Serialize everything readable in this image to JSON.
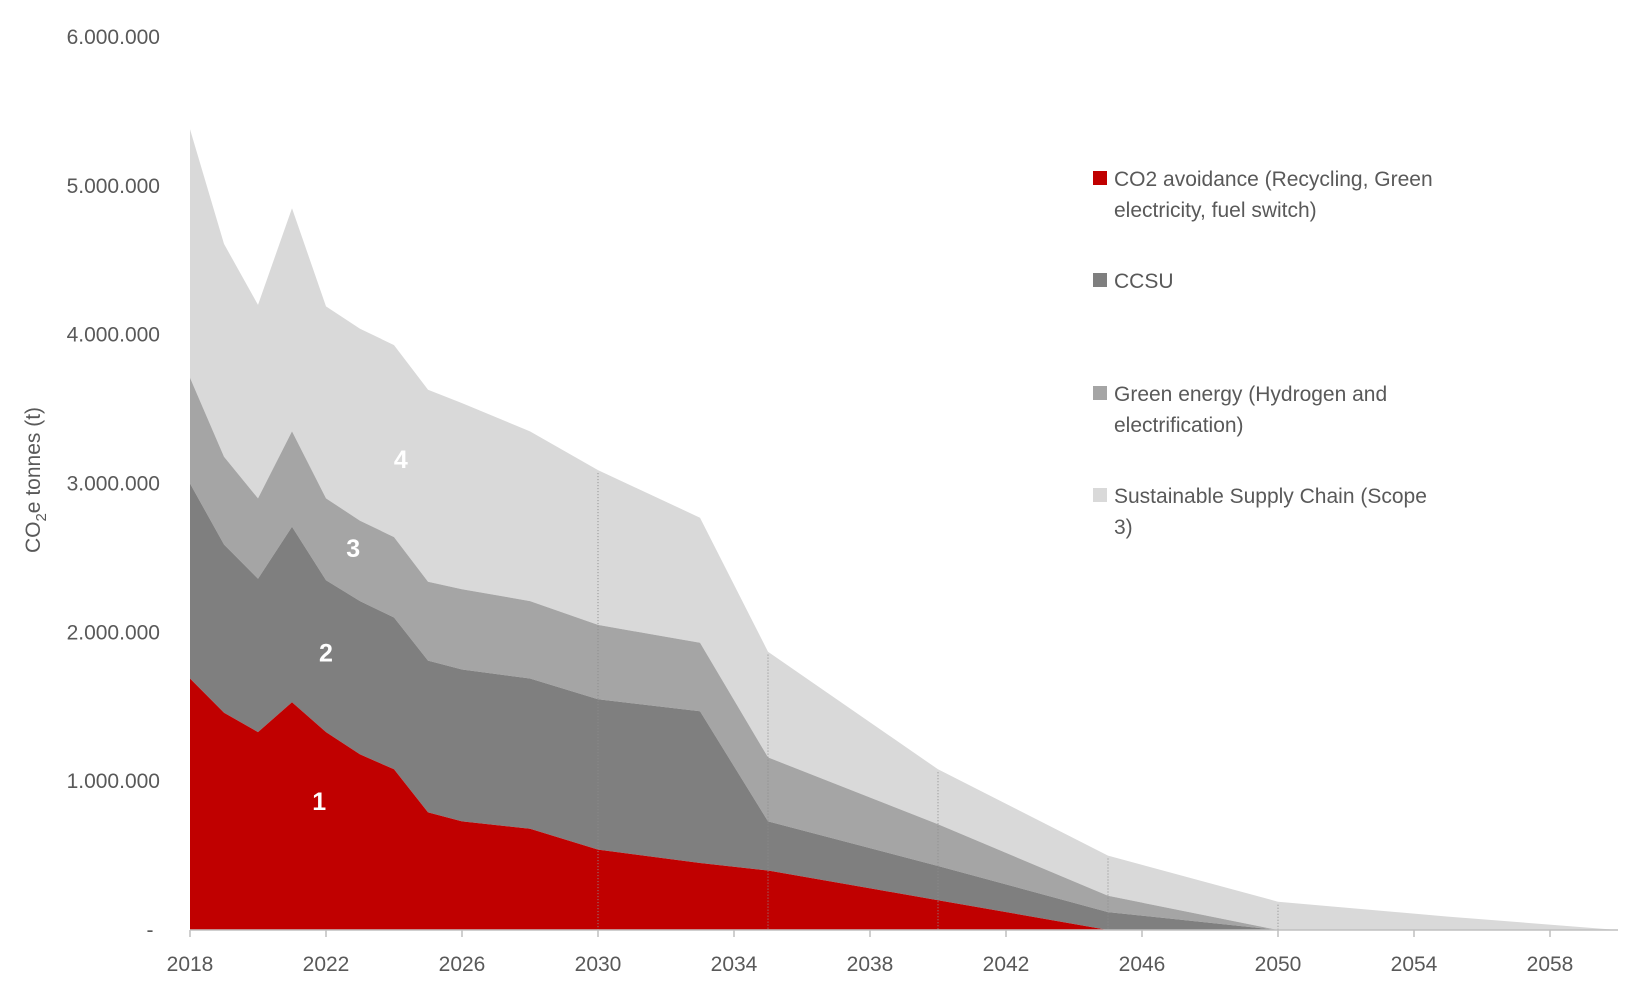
{
  "chart_data": {
    "type": "area",
    "stacked": true,
    "title": "",
    "xlabel": "",
    "ylabel": "CO2e tonnes (t)",
    "ylabel_parts": {
      "pre": "CO",
      "sub": "2",
      "post": "e tonnes (t)"
    },
    "xlim": [
      2018,
      2060
    ],
    "ylim": [
      0,
      6000000
    ],
    "x_ticks": [
      2018,
      2022,
      2026,
      2030,
      2034,
      2038,
      2042,
      2046,
      2050,
      2054,
      2058
    ],
    "y_ticks": [
      {
        "value": 0,
        "label": "-"
      },
      {
        "value": 1000000,
        "label": "1.000.000"
      },
      {
        "value": 2000000,
        "label": "2.000.000"
      },
      {
        "value": 3000000,
        "label": "3.000.000"
      },
      {
        "value": 4000000,
        "label": "4.000.000"
      },
      {
        "value": 5000000,
        "label": "5.000.000"
      },
      {
        "value": 6000000,
        "label": "6.000.000"
      }
    ],
    "grid": false,
    "legend_position": "right",
    "x": [
      2018,
      2019,
      2020,
      2021,
      2022,
      2023,
      2024,
      2025,
      2026,
      2028,
      2030,
      2033,
      2035,
      2040,
      2045,
      2050,
      2055,
      2060
    ],
    "series": [
      {
        "name": "CO2 avoidance (Recycling, Green electricity, fuel switch)",
        "color": "#c00000",
        "label": "1",
        "values": [
          1690000,
          1460000,
          1330000,
          1530000,
          1330000,
          1180000,
          1080000,
          790000,
          730000,
          680000,
          540000,
          450000,
          400000,
          200000,
          0,
          0,
          0,
          0
        ]
      },
      {
        "name": "CCSU",
        "color": "#7f7f7f",
        "label": "2",
        "values": [
          1310000,
          1130000,
          1030000,
          1180000,
          1020000,
          1030000,
          1020000,
          1020000,
          1020000,
          1010000,
          1010000,
          1020000,
          330000,
          230000,
          120000,
          0,
          0,
          0
        ]
      },
      {
        "name": "Green energy (Hydrogen and electrification)",
        "color": "#a5a5a5",
        "label": "3",
        "values": [
          710000,
          590000,
          540000,
          640000,
          550000,
          540000,
          540000,
          530000,
          540000,
          520000,
          500000,
          460000,
          430000,
          280000,
          110000,
          0,
          0,
          0
        ]
      },
      {
        "name": "Sustainable Supply Chain (Scope 3)",
        "color": "#d9d9d9",
        "label": "4",
        "values": [
          1670000,
          1430000,
          1300000,
          1500000,
          1290000,
          1290000,
          1290000,
          1290000,
          1250000,
          1140000,
          1040000,
          840000,
          710000,
          370000,
          270000,
          190000,
          90000,
          0
        ]
      }
    ],
    "area_labels_at": [
      {
        "series": 0,
        "x": 2021.8,
        "y": 850000
      },
      {
        "series": 1,
        "x": 2022.0,
        "y": 1850000
      },
      {
        "series": 2,
        "x": 2022.8,
        "y": 2550000
      },
      {
        "series": 3,
        "x": 2024.2,
        "y": 3150000
      }
    ],
    "vertical_markers": [
      2030,
      2035,
      2040,
      2045,
      2050
    ]
  }
}
